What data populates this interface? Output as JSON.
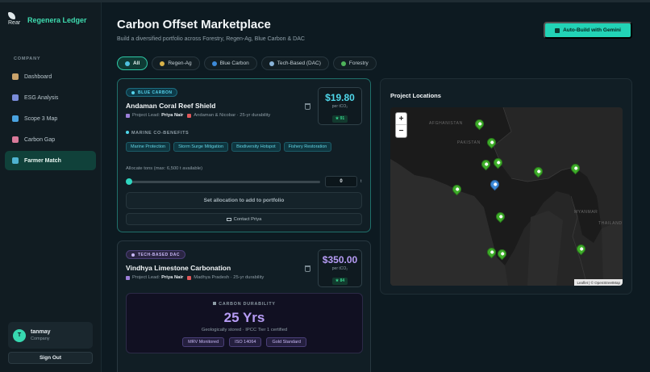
{
  "brand": {
    "logo_text": "Rear",
    "name": "Regenera Ledger"
  },
  "sidebar": {
    "section": "COMPANY",
    "items": [
      {
        "label": "Dashboard",
        "icon": "dashboard-icon",
        "color": "#c9a36b"
      },
      {
        "label": "ESG Analysis",
        "icon": "microscope-icon",
        "color": "#7a8cd9"
      },
      {
        "label": "Scope 3 Map",
        "icon": "globe-icon",
        "color": "#4aa3e0"
      },
      {
        "label": "Carbon Gap",
        "icon": "chart-down-icon",
        "color": "#d97a9a"
      },
      {
        "label": "Farmer Match",
        "icon": "handshake-icon",
        "color": "#4fb3d1"
      }
    ],
    "active_index": 4
  },
  "user": {
    "initial": "T",
    "name": "tanmay",
    "role": "Company"
  },
  "signout_label": "Sign Out",
  "header": {
    "title": "Carbon Offset Marketplace",
    "subtitle": "Build a diversified portfolio across Forestry, Regen-Ag, Blue Carbon & DAC",
    "auto_build_label": "Auto-Build with Gemini"
  },
  "tabs": [
    {
      "label": "All",
      "active": true,
      "color": "#4fc1e0"
    },
    {
      "label": "Regen-Ag",
      "active": false,
      "color": "#d9b34a"
    },
    {
      "label": "Blue Carbon",
      "active": false,
      "color": "#3d8ad9"
    },
    {
      "label": "Tech-Based (DAC)",
      "active": false,
      "color": "#8ab4d9"
    },
    {
      "label": "Forestry",
      "active": false,
      "color": "#4fb35a"
    }
  ],
  "projects": [
    {
      "badge": "BLUE CARBON",
      "name": "Andaman Coral Reef Shield",
      "lead_prefix": "Project Lead:",
      "lead": "Priya Nair",
      "location": "Andaman & Nicobar · 25-yr durability",
      "price": "$19.80",
      "price_color": "#4fd7ea",
      "per": "per tCO₂",
      "score": "★ 91",
      "cobenefits_label": "MARINE CO-BENEFITS",
      "cobenefits": [
        "Marine Protection",
        "Storm Surge Mitigation",
        "Biodiversity Hotspot",
        "Fishery Restoration"
      ],
      "allocate_label": "Allocate tons (max: 6,500 t available)",
      "allocation_fraction": 0,
      "allocation_value": "0",
      "allocation_unit": "t",
      "set_label": "Set allocation to add to portfolio",
      "contact_label": "Contact Priya"
    },
    {
      "badge": "TECH-BASED DAC",
      "name": "Vindhya Limestone Carbonation",
      "lead_prefix": "Project Lead:",
      "lead": "Priya Nair",
      "location": "Madhya Pradesh · 25-yr durability",
      "price": "$350.00",
      "price_color": "#b79cf5",
      "per": "per tCO₂",
      "score": "★ 84",
      "durability_label": "CARBON DURABILITY",
      "durability_value": "25 Yrs",
      "durability_sub": "Geologically stored · IPCC Tier 1 certified",
      "tags": [
        "MRV Monitored",
        "ISO 14064",
        "Gold Standard"
      ]
    }
  ],
  "map": {
    "title": "Project Locations",
    "zoom_in": "+",
    "zoom_out": "−",
    "labels": [
      "AFGHANISTAN",
      "PAKISTAN",
      "MYANMAR",
      "THAILAND"
    ],
    "attribution": "Leaflet | © OpenStreetMap",
    "pins": [
      {
        "lat": 34.1,
        "lon": 74.8,
        "color": "green"
      },
      {
        "lat": 30.7,
        "lon": 76.8,
        "color": "green"
      },
      {
        "lat": 26.9,
        "lon": 75.8,
        "color": "green"
      },
      {
        "lat": 27.2,
        "lon": 78.0,
        "color": "green"
      },
      {
        "lat": 23.3,
        "lon": 77.4,
        "color": "blue"
      },
      {
        "lat": 22.3,
        "lon": 70.8,
        "color": "green"
      },
      {
        "lat": 25.6,
        "lon": 85.1,
        "color": "green"
      },
      {
        "lat": 26.1,
        "lon": 91.7,
        "color": "green"
      },
      {
        "lat": 17.4,
        "lon": 78.5,
        "color": "green"
      },
      {
        "lat": 11.0,
        "lon": 76.9,
        "color": "green"
      },
      {
        "lat": 10.8,
        "lon": 78.7,
        "color": "green"
      },
      {
        "lat": 11.7,
        "lon": 92.7,
        "color": "green"
      }
    ]
  }
}
